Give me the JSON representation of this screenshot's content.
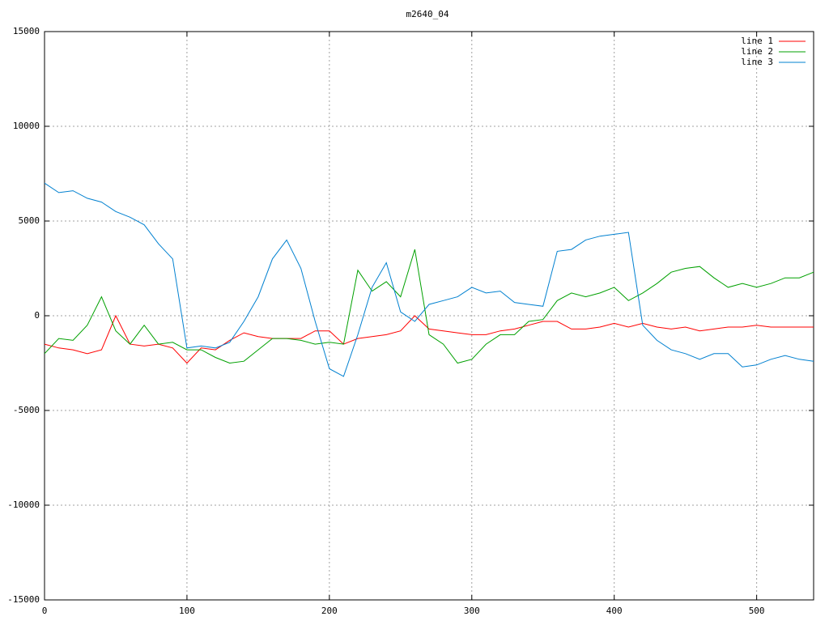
{
  "chart_data": {
    "type": "line",
    "title": "m2640_04",
    "x": [
      0,
      10,
      20,
      30,
      40,
      50,
      60,
      70,
      80,
      90,
      100,
      110,
      120,
      130,
      140,
      150,
      160,
      170,
      180,
      190,
      200,
      210,
      220,
      230,
      240,
      250,
      260,
      270,
      280,
      290,
      300,
      310,
      320,
      330,
      340,
      350,
      360,
      370,
      380,
      390,
      400,
      410,
      420,
      430,
      440,
      450,
      460,
      470,
      480,
      490,
      500,
      510,
      520,
      530,
      540
    ],
    "series": [
      {
        "name": "line 1",
        "color": "#ff0000",
        "values": [
          -1500,
          -1700,
          -1800,
          -2000,
          -1800,
          0,
          -1500,
          -1600,
          -1500,
          -1700,
          -2500,
          -1700,
          -1800,
          -1300,
          -900,
          -1100,
          -1200,
          -1200,
          -1200,
          -800,
          -800,
          -1500,
          -1200,
          -1100,
          -1000,
          -800,
          0,
          -700,
          -800,
          -900,
          -1000,
          -1000,
          -800,
          -700,
          -500,
          -300,
          -300,
          -700,
          -700,
          -600,
          -400,
          -600,
          -400,
          -600,
          -700,
          -600,
          -800,
          -700,
          -600,
          -600,
          -500,
          -600,
          -600,
          -600,
          -600
        ]
      },
      {
        "name": "line 2",
        "color": "#00a000",
        "values": [
          -2000,
          -1200,
          -1300,
          -500,
          1000,
          -800,
          -1500,
          -500,
          -1500,
          -1400,
          -1800,
          -1800,
          -2200,
          -2500,
          -2400,
          -1800,
          -1200,
          -1200,
          -1300,
          -1500,
          -1400,
          -1500,
          2400,
          1300,
          1800,
          1000,
          3500,
          -1000,
          -1500,
          -2500,
          -2300,
          -1500,
          -1000,
          -1000,
          -300,
          -200,
          800,
          1200,
          1000,
          1200,
          1500,
          800,
          1200,
          1700,
          2300,
          2500,
          2600,
          2000,
          1500,
          1700,
          1500,
          1700,
          2000,
          2000,
          2300
        ]
      },
      {
        "name": "line 3",
        "color": "#0080d0",
        "values": [
          7000,
          6500,
          6600,
          6200,
          6000,
          5500,
          5200,
          4800,
          3800,
          3000,
          -1700,
          -1600,
          -1700,
          -1400,
          -300,
          1000,
          3000,
          4000,
          2500,
          -300,
          -2800,
          -3200,
          -1000,
          1500,
          2800,
          200,
          -300,
          600,
          800,
          1000,
          1500,
          1200,
          1300,
          700,
          600,
          500,
          3400,
          3500,
          4000,
          4200,
          4300,
          4400,
          -500,
          -1300,
          -1800,
          -2000,
          -2300,
          -2000,
          -2000,
          -2700,
          -2600,
          -2300,
          -2100,
          -2300,
          -2400
        ]
      }
    ],
    "xlim": [
      0,
      540
    ],
    "xticks": [
      0,
      100,
      200,
      300,
      400,
      500
    ],
    "ylim": [
      -15000,
      15000
    ],
    "yticks": [
      -15000,
      -10000,
      -5000,
      0,
      5000,
      10000,
      15000
    ],
    "grid": true,
    "legend": "top-right"
  }
}
